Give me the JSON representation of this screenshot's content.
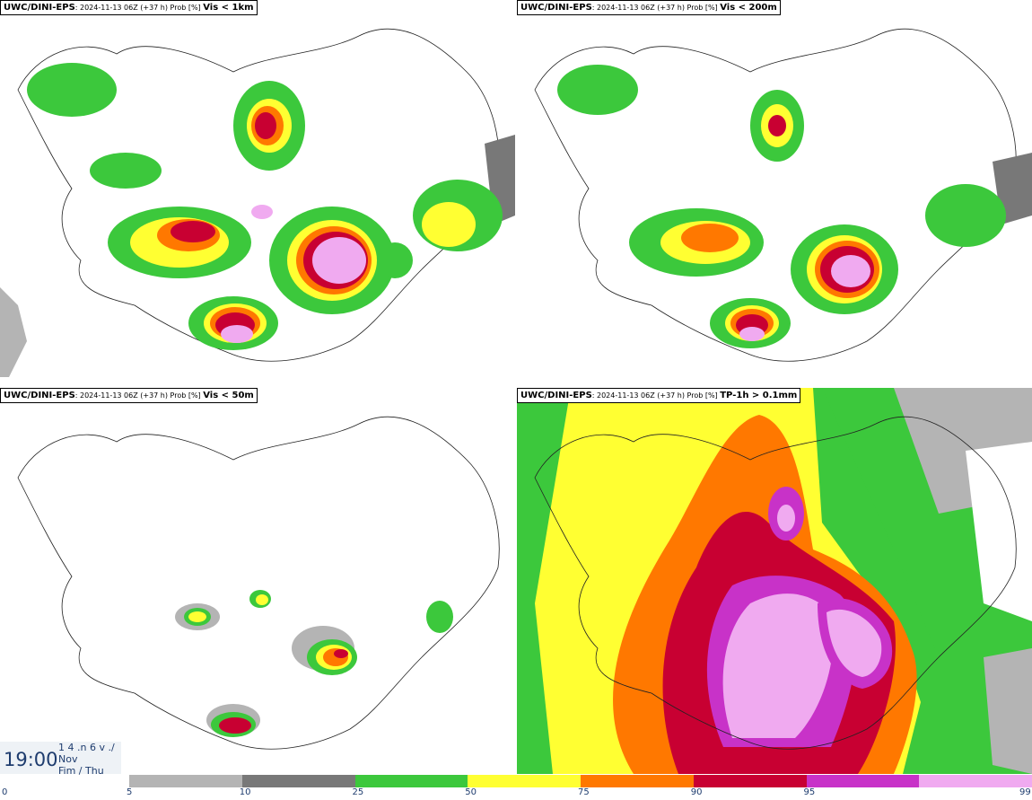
{
  "panels": [
    {
      "source": "UWC/DINI-EPS",
      "meta": ": 2024-11-13 06Z (+37 h) Prob [%] ",
      "variable": "Vis < 1km"
    },
    {
      "source": "UWC/DINI-EPS",
      "meta": ": 2024-11-13 06Z (+37 h) Prob [%] ",
      "variable": "Vis < 200m"
    },
    {
      "source": "UWC/DINI-EPS",
      "meta": ": 2024-11-13 06Z (+37 h) Prob [%] ",
      "variable": "Vis < 50m"
    },
    {
      "source": "UWC/DINI-EPS",
      "meta": ": 2024-11-13 06Z (+37 h) Prob [%] ",
      "variable": "TP-1h > 0.1mm"
    }
  ],
  "time": {
    "clock": "19:00",
    "line1": "1 4 .n 6 v ./",
    "line2": "Nov",
    "line3": "Fim / Thu"
  },
  "colorbar": {
    "labels": [
      "0",
      "5",
      "10",
      "25",
      "50",
      "75",
      "90",
      "95",
      "99"
    ],
    "colors": [
      "#b4b4b4",
      "#787878",
      "#3cc83c",
      "#ffff32",
      "#ff7800",
      "#c80032",
      "#c832c8",
      "#f0aaf0"
    ]
  }
}
